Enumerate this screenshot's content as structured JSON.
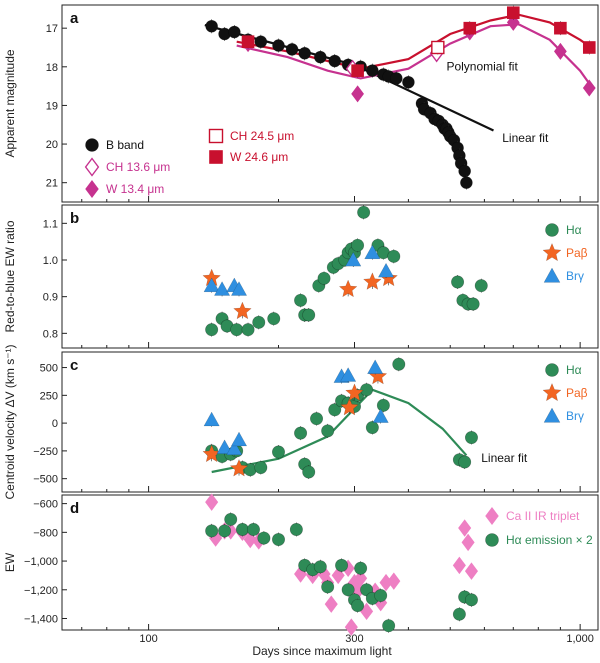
{
  "colors": {
    "black": "#111111",
    "magenta": "#c6328f",
    "red": "#c8102e",
    "green": "#2e8b57",
    "orange": "#f26522",
    "blue": "#2f8fe0",
    "pink": "#ee7fc3"
  },
  "xaxis": {
    "label": "Days since maximum light",
    "scale": "log",
    "range": [
      63,
      1100
    ],
    "ticks": [
      100,
      300,
      1000
    ],
    "tick_labels": [
      "100",
      "300",
      "1,000"
    ]
  },
  "chart_data": [
    {
      "panel": "a",
      "type": "scatter",
      "ylabel": "Apparent magnitude",
      "ylim": [
        21.5,
        16.4
      ],
      "y_inverted": true,
      "yticks": [
        17,
        18,
        19,
        20,
        21
      ],
      "ytick_labels": [
        "17",
        "18",
        "19",
        "20",
        "21"
      ],
      "series": [
        {
          "name": "B band",
          "marker": "circle",
          "color": "#111111",
          "x": [
            140,
            150,
            158,
            170,
            182,
            200,
            215,
            230,
            250,
            270,
            290,
            310,
            330,
            350,
            360,
            375,
            400,
            430,
            435,
            450,
            460,
            470,
            480,
            485,
            490,
            495,
            500,
            510,
            520,
            525,
            530,
            540,
            545
          ],
          "y": [
            16.95,
            17.15,
            17.1,
            17.3,
            17.35,
            17.45,
            17.55,
            17.65,
            17.75,
            17.85,
            17.95,
            18.0,
            18.1,
            18.2,
            18.25,
            18.3,
            18.4,
            18.95,
            19.1,
            19.2,
            19.35,
            19.4,
            19.5,
            19.6,
            19.6,
            19.7,
            19.8,
            19.9,
            20.1,
            20.3,
            20.5,
            20.7,
            21.0
          ]
        },
        {
          "name": "CH 13.6 μm",
          "marker": "diamond-open",
          "color": "#c6328f",
          "x": [
            297,
            465
          ],
          "y": [
            18.05,
            17.65
          ]
        },
        {
          "name": "W 13.4 μm",
          "marker": "diamond",
          "color": "#c6328f",
          "x": [
            170,
            305,
            555,
            700,
            900,
            1050
          ],
          "y": [
            17.4,
            18.7,
            17.1,
            16.85,
            17.6,
            18.55
          ]
        },
        {
          "name": "CH 24.5 μm",
          "marker": "square-open",
          "color": "#c8102e",
          "x": [
            468
          ],
          "y": [
            17.5
          ]
        },
        {
          "name": "W 24.6 μm",
          "marker": "square",
          "color": "#c8102e",
          "x": [
            170,
            305,
            555,
            700,
            900,
            1050
          ],
          "y": [
            17.35,
            18.1,
            17.0,
            16.6,
            17.0,
            17.5
          ]
        }
      ],
      "fits": [
        {
          "name": "Linear fit",
          "color": "#111111",
          "x": [
            135,
            300,
            630
          ],
          "y": [
            16.92,
            17.95,
            19.65
          ]
        },
        {
          "name": "Polynomial fit",
          "color": "#c8102e",
          "x": [
            160,
            210,
            260,
            310,
            400,
            500,
            620,
            720,
            850,
            1000,
            1060
          ],
          "y": [
            17.35,
            17.6,
            17.85,
            18.05,
            17.8,
            17.15,
            16.8,
            16.65,
            16.85,
            17.3,
            17.5
          ]
        },
        {
          "name": "Polynomial fit magenta",
          "color": "#c6328f",
          "x": [
            160,
            210,
            260,
            310,
            400,
            500,
            620,
            720,
            850,
            1000,
            1060
          ],
          "y": [
            17.45,
            17.75,
            18.1,
            18.3,
            18.05,
            17.4,
            16.95,
            16.9,
            17.3,
            18.1,
            18.5
          ]
        }
      ],
      "annotations": [
        {
          "text": "Polynomial fit",
          "x": 490,
          "y": 18.1
        },
        {
          "text": "Linear fit",
          "x": 660,
          "y": 19.95
        }
      ]
    },
    {
      "panel": "b",
      "type": "scatter",
      "ylabel": "Red-to-blue EW ratio",
      "ylim": [
        0.76,
        1.15
      ],
      "yticks": [
        0.8,
        0.9,
        1.0,
        1.1
      ],
      "ytick_labels": [
        "0.8",
        "0.9",
        "1.0",
        "1.1"
      ],
      "series": [
        {
          "name": "Hα",
          "marker": "circle",
          "color": "#2e8b57",
          "x": [
            140,
            148,
            152,
            160,
            170,
            180,
            195,
            225,
            230,
            235,
            248,
            255,
            268,
            275,
            285,
            290,
            295,
            300,
            305,
            315,
            340,
            350,
            370,
            520,
            535,
            550,
            565,
            590
          ],
          "y": [
            0.81,
            0.84,
            0.82,
            0.81,
            0.81,
            0.83,
            0.84,
            0.89,
            0.85,
            0.85,
            0.93,
            0.95,
            0.98,
            0.99,
            1.0,
            1.02,
            1.03,
            1.02,
            1.04,
            1.13,
            1.04,
            1.02,
            1.01,
            0.94,
            0.89,
            0.88,
            0.88,
            0.93
          ]
        },
        {
          "name": "Paβ",
          "marker": "star",
          "color": "#f26522",
          "x": [
            140,
            165,
            290,
            330,
            360
          ],
          "y": [
            0.95,
            0.86,
            0.92,
            0.94,
            0.95
          ]
        },
        {
          "name": "Brγ",
          "marker": "triangle",
          "color": "#2f8fe0",
          "x": [
            140,
            148,
            158,
            162,
            298,
            330,
            355
          ],
          "y": [
            0.93,
            0.92,
            0.93,
            0.92,
            1.0,
            1.02,
            0.97
          ]
        }
      ]
    },
    {
      "panel": "c",
      "type": "scatter",
      "ylabel": "Centroid velocity ΔV (km s⁻¹)",
      "ylim": [
        -620,
        640
      ],
      "yticks": [
        -500,
        -250,
        0,
        250,
        500
      ],
      "ytick_labels": [
        "−500",
        "−250",
        "0",
        "250",
        "500"
      ],
      "series": [
        {
          "name": "Hα",
          "marker": "circle",
          "color": "#2e8b57",
          "x": [
            140,
            148,
            155,
            160,
            165,
            172,
            182,
            200,
            225,
            230,
            235,
            245,
            260,
            270,
            280,
            290,
            300,
            305,
            320,
            330,
            350,
            380,
            525,
            540,
            560
          ],
          "y": [
            -250,
            -300,
            -280,
            -250,
            -400,
            -420,
            -400,
            -260,
            -90,
            -370,
            -440,
            40,
            -70,
            120,
            200,
            180,
            150,
            250,
            300,
            -40,
            160,
            530,
            -330,
            -350,
            -130
          ]
        },
        {
          "name": "Paβ",
          "marker": "star",
          "color": "#f26522",
          "x": [
            140,
            162,
            292,
            300,
            340
          ],
          "y": [
            -280,
            -410,
            140,
            270,
            420
          ]
        },
        {
          "name": "Brγ",
          "marker": "triangle",
          "color": "#2f8fe0",
          "x": [
            140,
            150,
            158,
            162,
            280,
            290,
            335,
            345
          ],
          "y": [
            30,
            -220,
            -230,
            -150,
            420,
            430,
            500,
            60
          ]
        }
      ],
      "fits": [
        {
          "name": "Linear fit",
          "color": "#2e8b57",
          "x": [
            140,
            200,
            260,
            330,
            400,
            480,
            545
          ],
          "y": [
            -440,
            -320,
            -120,
            300,
            180,
            -50,
            -290
          ]
        }
      ],
      "annotations": [
        {
          "text": "Linear fit",
          "x": 590,
          "y": -350
        }
      ]
    },
    {
      "panel": "d",
      "type": "scatter",
      "ylabel": "EW",
      "ylim": [
        -1480,
        -540
      ],
      "yticks": [
        -600,
        -800,
        -1000,
        -1200,
        -1400
      ],
      "ytick_labels": [
        "−600",
        "−800",
        "−1,000",
        "−1,200",
        "−1,400"
      ],
      "series": [
        {
          "name": "Ca II IR triplet",
          "marker": "diamond",
          "color": "#ee7fc3",
          "x": [
            140,
            143,
            150,
            155,
            165,
            172,
            180,
            225,
            240,
            255,
            260,
            265,
            275,
            290,
            295,
            300,
            305,
            310,
            320,
            335,
            345,
            355,
            370,
            525,
            540,
            550,
            560
          ],
          "y": [
            -590,
            -840,
            -790,
            -790,
            -800,
            -850,
            -860,
            -1090,
            -1100,
            -1090,
            -1150,
            -1300,
            -1100,
            -1050,
            -1460,
            -1150,
            -1210,
            -1120,
            -1350,
            -1210,
            -1290,
            -1150,
            -1140,
            -1030,
            -770,
            -870,
            -1070
          ]
        },
        {
          "name": "Hα emission × 2",
          "marker": "circle",
          "color": "#2e8b57",
          "x": [
            140,
            150,
            155,
            165,
            175,
            185,
            200,
            220,
            230,
            240,
            250,
            260,
            280,
            290,
            300,
            305,
            310,
            320,
            330,
            345,
            360,
            525,
            540,
            560
          ],
          "y": [
            -790,
            -790,
            -710,
            -780,
            -780,
            -840,
            -850,
            -780,
            -1030,
            -1060,
            -1040,
            -1180,
            -1030,
            -1200,
            -1270,
            -1310,
            -1050,
            -1200,
            -1260,
            -1240,
            -1450,
            -1370,
            -1250,
            -1270
          ]
        }
      ]
    }
  ],
  "panels_text": {
    "a": {
      "letter": "a",
      "ylabel": "Apparent magnitude"
    },
    "b": {
      "letter": "b",
      "ylabel": "Red-to-blue EW ratio"
    },
    "c": {
      "letter": "c",
      "ylabel": "Centroid velocity ΔV (km s⁻¹)"
    },
    "d": {
      "letter": "d",
      "ylabel": "EW"
    }
  },
  "legends": {
    "a_left": [
      {
        "label": "B band",
        "marker": "circle",
        "color": "#111111"
      },
      {
        "label": "CH 13.6 μm",
        "marker": "diamond-open",
        "color": "#c6328f"
      },
      {
        "label": "W 13.4 μm",
        "marker": "diamond",
        "color": "#c6328f"
      }
    ],
    "a_right": [
      {
        "label": "CH 24.5 μm",
        "marker": "square-open",
        "color": "#c8102e"
      },
      {
        "label": "W 24.6 μm",
        "marker": "square",
        "color": "#c8102e"
      }
    ],
    "b": [
      {
        "label": "Hα",
        "marker": "circle",
        "color": "#2e8b57"
      },
      {
        "label": "Paβ",
        "marker": "star",
        "color": "#f26522"
      },
      {
        "label": "Brγ",
        "marker": "triangle",
        "color": "#2f8fe0"
      }
    ],
    "c": [
      {
        "label": "Hα",
        "marker": "circle",
        "color": "#2e8b57"
      },
      {
        "label": "Paβ",
        "marker": "star",
        "color": "#f26522"
      },
      {
        "label": "Brγ",
        "marker": "triangle",
        "color": "#2f8fe0"
      }
    ],
    "d": [
      {
        "label": "Ca II IR triplet",
        "marker": "diamond",
        "color": "#ee7fc3"
      },
      {
        "label": "Hα emission × 2",
        "marker": "circle",
        "color": "#2e8b57"
      }
    ]
  }
}
